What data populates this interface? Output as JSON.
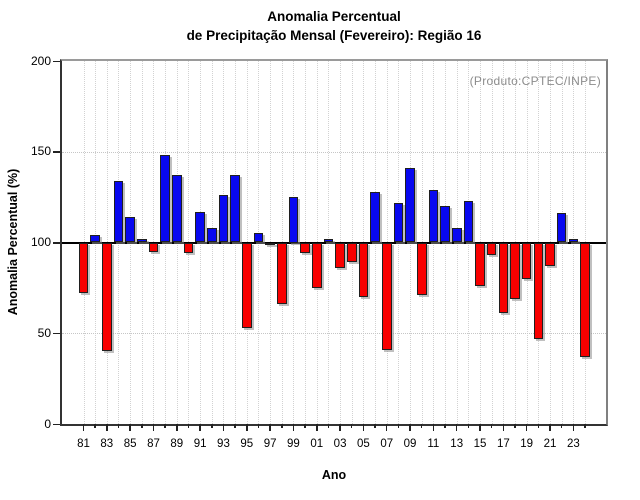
{
  "chart_data": {
    "type": "bar",
    "title_line1": "Anomalia Percentual",
    "title_line2": "de Precipitação Mensal (Fevereiro): Região 16",
    "xlabel": "Ano",
    "ylabel": "Anomalia Percentual (%)",
    "annotation": "(Produto:CPTEC/INPE)",
    "ylim": [
      0,
      200
    ],
    "yticks": [
      0,
      50,
      100,
      150,
      200
    ],
    "grid_y": [
      50,
      150
    ],
    "baseline": 100,
    "grid": "dotted",
    "legend_position": "none",
    "categories": [
      "81",
      "82",
      "83",
      "84",
      "85",
      "86",
      "87",
      "88",
      "89",
      "90",
      "91",
      "92",
      "93",
      "94",
      "95",
      "96",
      "97",
      "98",
      "99",
      "00",
      "01",
      "02",
      "03",
      "04",
      "05",
      "06",
      "07",
      "08",
      "09",
      "10",
      "11",
      "12",
      "13",
      "14",
      "15",
      "16",
      "17",
      "18",
      "19",
      "20",
      "21",
      "22",
      "23",
      "24"
    ],
    "values": [
      72,
      104,
      40,
      134,
      114,
      102,
      95,
      148,
      137,
      94,
      117,
      108,
      126,
      137,
      53,
      105,
      99,
      66,
      125,
      94,
      75,
      102,
      86,
      89,
      70,
      128,
      41,
      122,
      141,
      71,
      129,
      120,
      108,
      123,
      76,
      93,
      61,
      69,
      80,
      47,
      87,
      116,
      102,
      37
    ],
    "colors": {
      "above_baseline": "#0808f0",
      "below_baseline": "#f80000",
      "annotation_text": "#8c8c8c",
      "axis": "#333333",
      "gridline": "#d2d2d2"
    }
  }
}
